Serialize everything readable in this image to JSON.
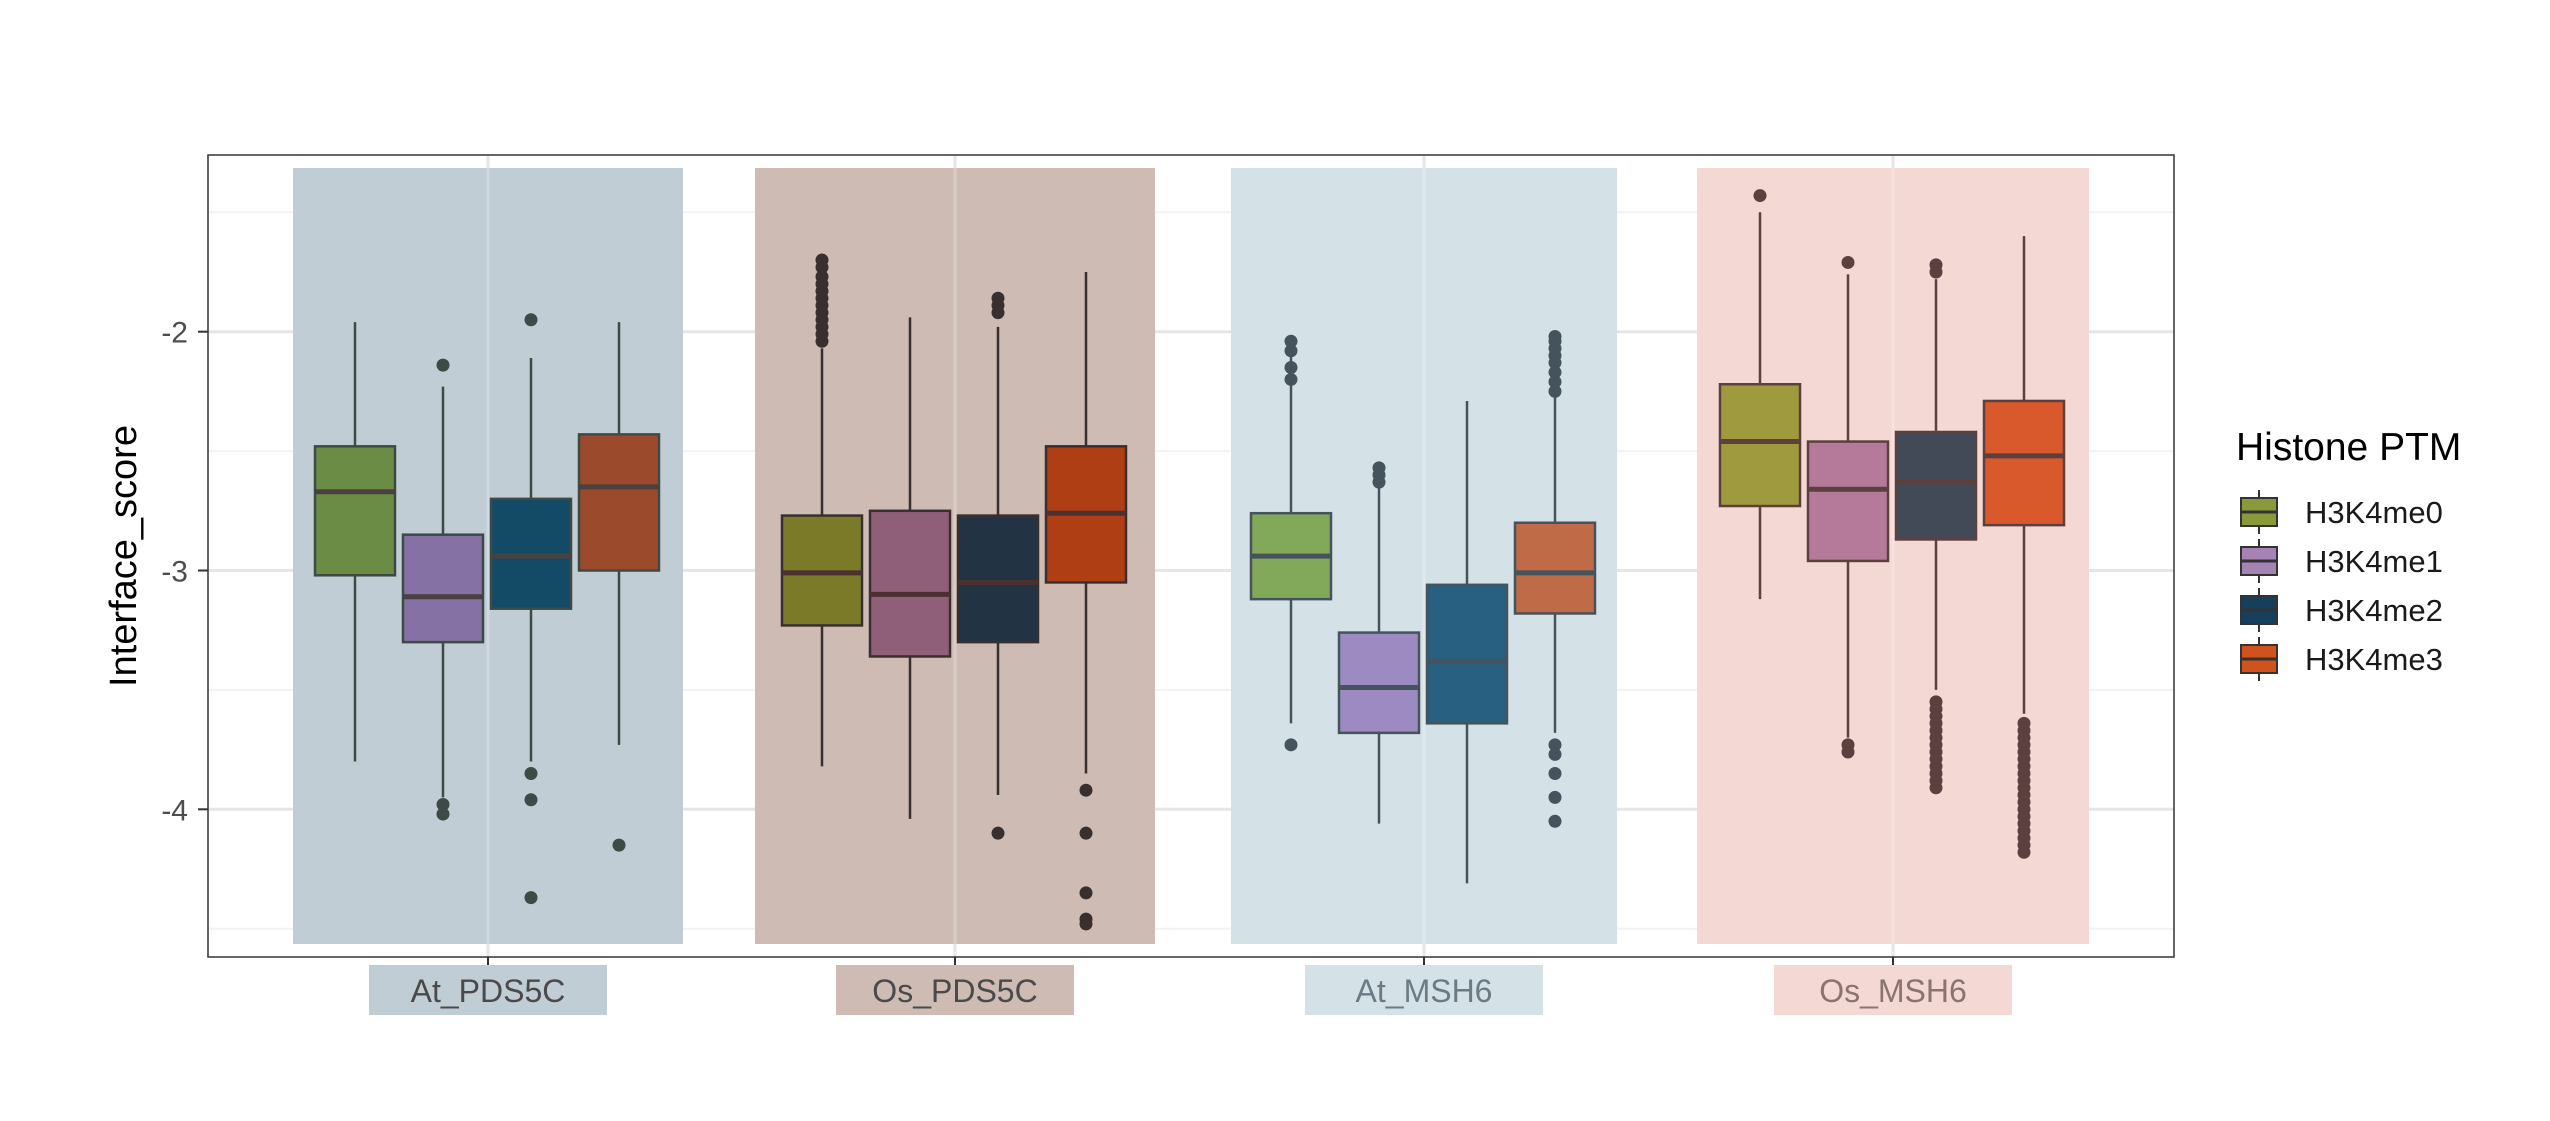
{
  "chart_data": {
    "type": "boxplot",
    "title": "",
    "xlabel": "",
    "ylabel": "Interface_score",
    "ylim": [
      -4.62,
      -1.27
    ],
    "yticks": [
      -2,
      -3,
      -4
    ],
    "ytick_labels": [
      "-2",
      "-3",
      "-4"
    ],
    "grid": "on",
    "legend": {
      "title": "Histone PTM",
      "placement": "right",
      "entries": [
        "H3K4me0",
        "H3K4me1",
        "H3K4me2",
        "H3K4me3"
      ]
    },
    "categories": [
      {
        "name": "At_PDS5C",
        "band_color": "#c1cdd4",
        "label_bg": "#c1cdd4",
        "label_color": "#4a4a4a",
        "boxes": [
          {
            "series": "H3K4me0",
            "fill": "#6a8c45",
            "stroke": "#3d4a45",
            "median_color": "#4a4040",
            "whislo": -3.8,
            "q1": -3.02,
            "median": -2.67,
            "q3": -2.48,
            "whishi": -1.96,
            "outliers": []
          },
          {
            "series": "H3K4me1",
            "fill": "#8571a3",
            "stroke": "#3d4a45",
            "median_color": "#4a4040",
            "whislo": -3.95,
            "q1": -3.3,
            "median": -3.11,
            "q3": -2.85,
            "whishi": -2.23,
            "outliers": [
              -2.14,
              -3.98,
              -4.02
            ]
          },
          {
            "series": "H3K4me2",
            "fill": "#134a66",
            "stroke": "#3d4a45",
            "median_color": "#4a4040",
            "whislo": -3.8,
            "q1": -3.16,
            "median": -2.94,
            "q3": -2.7,
            "whishi": -2.11,
            "outliers": [
              -1.95,
              -3.85,
              -3.96,
              -4.37
            ]
          },
          {
            "series": "H3K4me3",
            "fill": "#9b4b2c",
            "stroke": "#3d4a45",
            "median_color": "#4a4040",
            "whislo": -3.73,
            "q1": -3.0,
            "median": -2.65,
            "q3": -2.43,
            "whishi": -1.96,
            "outliers": [
              -4.15
            ]
          }
        ]
      },
      {
        "name": "Os_PDS5C",
        "band_color": "#cdbbb4",
        "label_bg": "#cdbbb4",
        "label_color": "#4a4a4a",
        "boxes": [
          {
            "series": "H3K4me0",
            "fill": "#7a7a28",
            "stroke": "#3a2f2f",
            "median_color": "#4a3030",
            "whislo": -3.82,
            "q1": -3.23,
            "median": -3.01,
            "q3": -2.77,
            "whishi": -2.07,
            "outliers": [
              -1.7,
              -1.73,
              -1.77,
              -1.8,
              -1.83,
              -1.86,
              -1.89,
              -1.92,
              -1.95,
              -1.98,
              -2.01,
              -2.04
            ]
          },
          {
            "series": "H3K4me1",
            "fill": "#8f5f7a",
            "stroke": "#3a2f2f",
            "median_color": "#4a3030",
            "whislo": -4.04,
            "q1": -3.36,
            "median": -3.1,
            "q3": -2.75,
            "whishi": -1.94,
            "outliers": []
          },
          {
            "series": "H3K4me2",
            "fill": "#223344",
            "stroke": "#3a2f2f",
            "median_color": "#4a3030",
            "whislo": -3.94,
            "q1": -3.3,
            "median": -3.05,
            "q3": -2.77,
            "whishi": -1.98,
            "outliers": [
              -1.86,
              -1.89,
              -1.92,
              -4.1
            ]
          },
          {
            "series": "H3K4me3",
            "fill": "#b03e14",
            "stroke": "#3a2f2f",
            "median_color": "#4a3030",
            "whislo": -3.85,
            "q1": -3.05,
            "median": -2.76,
            "q3": -2.48,
            "whishi": -1.75,
            "outliers": [
              -3.92,
              -4.1,
              -4.35,
              -4.46,
              -4.48
            ]
          }
        ]
      },
      {
        "name": "At_MSH6",
        "band_color": "#d4e2e8",
        "label_bg": "#d4e2e8",
        "label_color": "#6a7b84",
        "boxes": [
          {
            "series": "H3K4me0",
            "fill": "#82a85a",
            "stroke": "#44535c",
            "median_color": "#44535c",
            "whislo": -3.64,
            "q1": -3.12,
            "median": -2.94,
            "q3": -2.76,
            "whishi": -2.1,
            "outliers": [
              -2.04,
              -2.08,
              -2.15,
              -2.2,
              -3.73
            ]
          },
          {
            "series": "H3K4me1",
            "fill": "#9c8ac1",
            "stroke": "#44535c",
            "median_color": "#44535c",
            "whislo": -4.06,
            "q1": -3.68,
            "median": -3.49,
            "q3": -3.26,
            "whishi": -2.65,
            "outliers": [
              -2.57,
              -2.6,
              -2.63
            ]
          },
          {
            "series": "H3K4me2",
            "fill": "#276080",
            "stroke": "#44535c",
            "median_color": "#44535c",
            "whislo": -4.31,
            "q1": -3.64,
            "median": -3.38,
            "q3": -3.06,
            "whishi": -2.29,
            "outliers": []
          },
          {
            "series": "H3K4me3",
            "fill": "#bf6b48",
            "stroke": "#44535c",
            "median_color": "#44535c",
            "whislo": -3.68,
            "q1": -3.18,
            "median": -3.01,
            "q3": -2.8,
            "whishi": -2.08,
            "outliers": [
              -2.02,
              -2.04,
              -2.07,
              -2.1,
              -2.13,
              -2.17,
              -2.21,
              -2.25,
              -3.73,
              -3.77,
              -3.85,
              -3.95,
              -4.05
            ]
          }
        ]
      },
      {
        "name": "Os_MSH6",
        "band_color": "#f3d8d3",
        "label_bg": "#f3d8d3",
        "label_color": "#8a7370",
        "boxes": [
          {
            "series": "H3K4me0",
            "fill": "#a09a3e",
            "stroke": "#5c4040",
            "median_color": "#5c4040",
            "whislo": -3.12,
            "q1": -2.73,
            "median": -2.46,
            "q3": -2.22,
            "whishi": -1.5,
            "outliers": [
              -1.43
            ]
          },
          {
            "series": "H3K4me1",
            "fill": "#b57a9a",
            "stroke": "#5c4040",
            "median_color": "#5c4040",
            "whislo": -3.7,
            "q1": -2.96,
            "median": -2.66,
            "q3": -2.46,
            "whishi": -1.76,
            "outliers": [
              -1.71,
              -3.73,
              -3.76
            ]
          },
          {
            "series": "H3K4me2",
            "fill": "#424a58",
            "stroke": "#5c4040",
            "median_color": "#5c4040",
            "whislo": -3.5,
            "q1": -2.87,
            "median": -2.63,
            "q3": -2.42,
            "whishi": -1.78,
            "outliers": [
              -1.72,
              -1.75,
              -3.55,
              -3.58,
              -3.61,
              -3.64,
              -3.67,
              -3.7,
              -3.73,
              -3.76,
              -3.79,
              -3.82,
              -3.85,
              -3.88,
              -3.91
            ]
          },
          {
            "series": "H3K4me3",
            "fill": "#d9592c",
            "stroke": "#5c4040",
            "median_color": "#5c4040",
            "whislo": -3.6,
            "q1": -2.81,
            "median": -2.52,
            "q3": -2.29,
            "whishi": -1.6,
            "outliers": [
              -3.64,
              -3.67,
              -3.7,
              -3.73,
              -3.76,
              -3.79,
              -3.82,
              -3.85,
              -3.88,
              -3.91,
              -3.94,
              -3.97,
              -4.0,
              -4.03,
              -4.06,
              -4.09,
              -4.12,
              -4.15,
              -4.18
            ]
          }
        ]
      }
    ]
  },
  "legend_colors": {
    "H3K4me0": "#8a9a3a",
    "H3K4me1": "#a583b5",
    "H3K4me2": "#163f5e",
    "H3K4me3": "#d0521c"
  },
  "colors": {
    "panel_border": "#333333",
    "grid_major": "#e6e6e6",
    "grid_minor": "#f2f2f2",
    "tick_text": "#4d4d4d"
  }
}
